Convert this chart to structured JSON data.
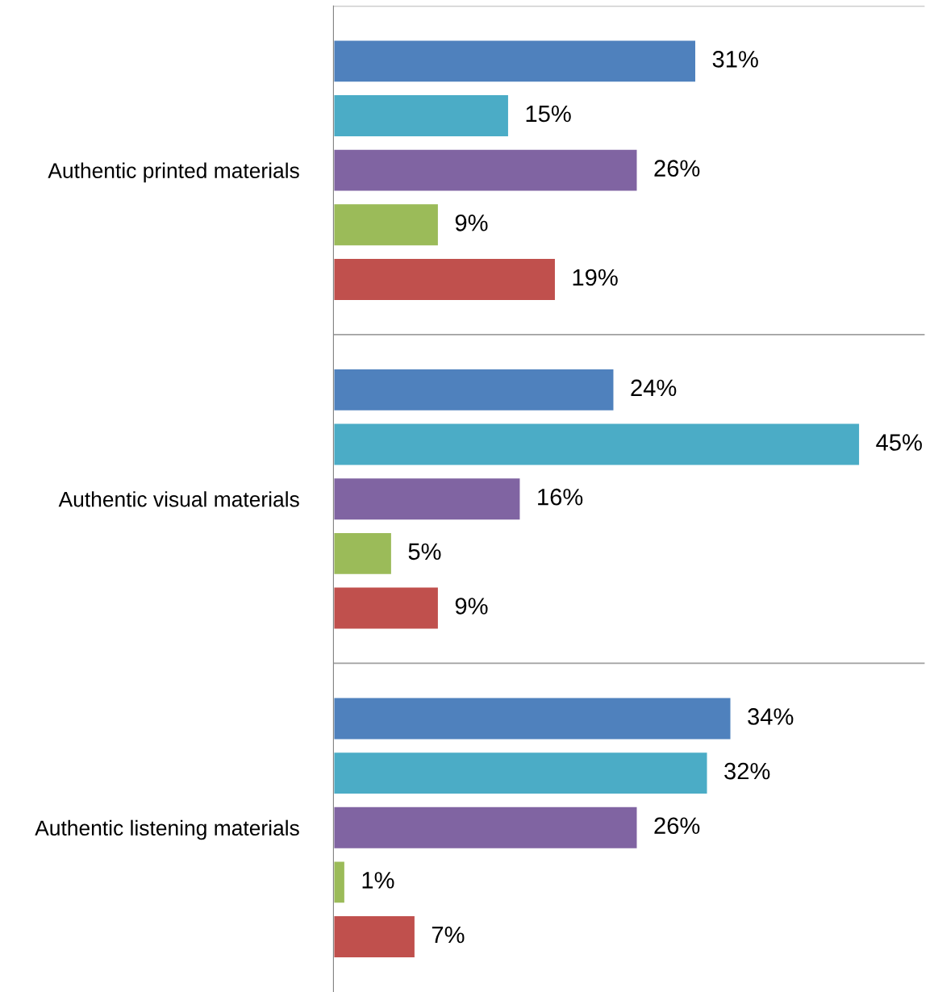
{
  "chart_data": {
    "type": "bar",
    "orientation": "horizontal",
    "categories": [
      "Authentic printed materials",
      "Authentic visual materials",
      "Authentic listening materials"
    ],
    "series": [
      {
        "color": "#4f81bd",
        "values": [
          31,
          24,
          34
        ],
        "value_labels": [
          "31%",
          "24%",
          "34%"
        ]
      },
      {
        "color": "#4bacc6",
        "values": [
          15,
          45,
          32
        ],
        "value_labels": [
          "15%",
          "45%",
          "32%"
        ]
      },
      {
        "color": "#8064a2",
        "values": [
          26,
          16,
          26
        ],
        "value_labels": [
          "26%",
          "16%",
          "26%"
        ]
      },
      {
        "color": "#9bbb59",
        "values": [
          9,
          5,
          1
        ],
        "value_labels": [
          "9%",
          "5%",
          "1%"
        ]
      },
      {
        "color": "#c0504d",
        "values": [
          19,
          9,
          7
        ],
        "value_labels": [
          "19%",
          "9%",
          "7%"
        ]
      }
    ],
    "grid": "y"
  }
}
